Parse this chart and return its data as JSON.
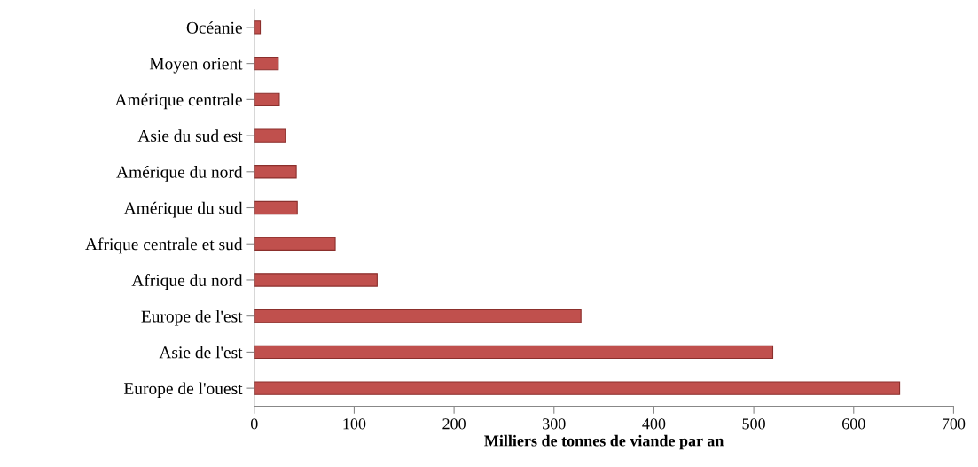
{
  "chart_data": {
    "type": "bar",
    "orientation": "horizontal",
    "xlabel": "Milliers de tonnes de viande par an",
    "categories": [
      "Océanie",
      "Moyen orient",
      "Amérique centrale",
      "Asie du sud est",
      "Amérique du nord",
      "Amérique du sud",
      "Afrique centrale et sud",
      "Afrique du nord",
      "Europe de l'est",
      "Asie de l'est",
      "Europe de l'ouest"
    ],
    "values": [
      6,
      24,
      25,
      31,
      42,
      43,
      81,
      123,
      327,
      519,
      646
    ],
    "color": "#c0504d",
    "xlim": [
      0,
      700
    ],
    "xticks": [
      0,
      100,
      200,
      300,
      400,
      500,
      600,
      700
    ],
    "grid": false,
    "legend": false
  }
}
